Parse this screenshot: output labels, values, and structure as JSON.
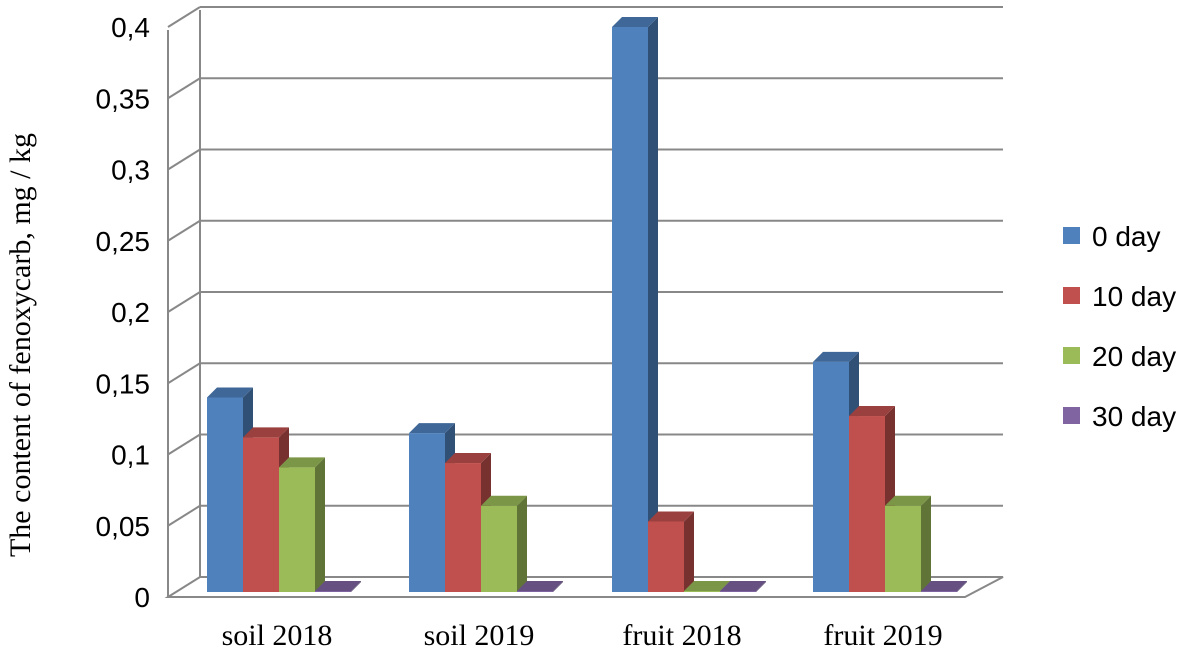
{
  "chart_data": {
    "type": "bar",
    "title": "",
    "xlabel": "",
    "ylabel": "The content of fenoxycarb, mg / kg",
    "ylim": [
      0,
      0.4
    ],
    "ytick_labels": [
      "0",
      "0,05",
      "0,1",
      "0,15",
      "0,2",
      "0,25",
      "0,3",
      "0,35",
      "0,4"
    ],
    "categories": [
      "soil 2018",
      "soil 2019",
      "fruit 2018",
      "fruit 2019"
    ],
    "legend_position": "right",
    "grid": true,
    "series": [
      {
        "name": "0 day",
        "color": "#4F81BD",
        "values": [
          0.14,
          0.115,
          0.4,
          0.165
        ]
      },
      {
        "name": "10 day",
        "color": "#C0504D",
        "values": [
          0.112,
          0.094,
          0.053,
          0.127
        ]
      },
      {
        "name": "20 day",
        "color": "#9BBB59",
        "values": [
          0.091,
          0.064,
          0.0,
          0.064
        ]
      },
      {
        "name": "30 day",
        "color": "#8064A2",
        "values": [
          0.0,
          0.0,
          0.0,
          0.0
        ]
      }
    ]
  }
}
